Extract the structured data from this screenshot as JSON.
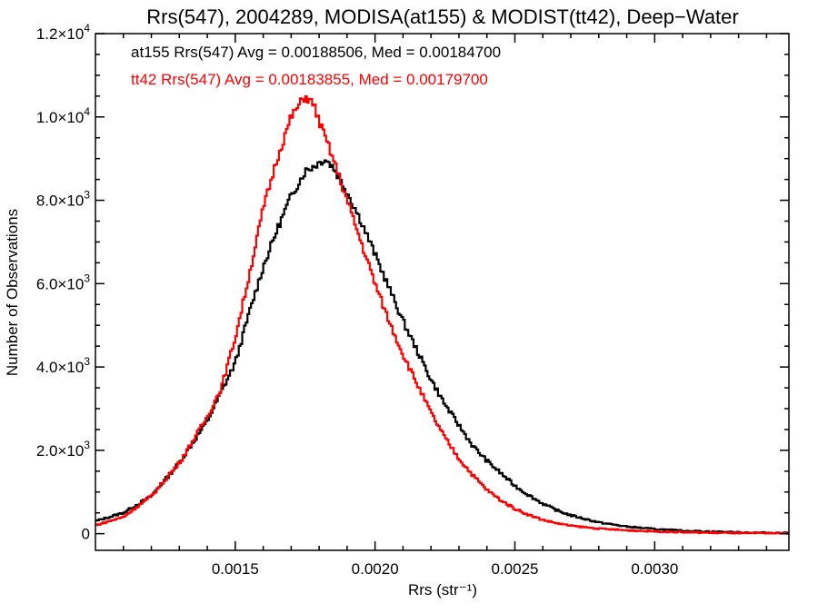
{
  "chart_data": {
    "type": "histogram",
    "title": "Rrs(547), 2004289, MODISA(at155) & MODIST(tt42), Deep−Water",
    "xlabel": "Rrs (str⁻¹)",
    "ylabel": "Number of Observations",
    "xlim": [
      0.001,
      0.00348
    ],
    "ylim": [
      -400,
      12000
    ],
    "x_ticks": [
      {
        "value": 0.0015,
        "label": "0.0015"
      },
      {
        "value": 0.002,
        "label": "0.0020"
      },
      {
        "value": 0.0025,
        "label": "0.0025"
      },
      {
        "value": 0.003,
        "label": "0.0030"
      }
    ],
    "y_ticks": [
      {
        "value": 0,
        "mantissa": "0",
        "exp": ""
      },
      {
        "value": 2000,
        "mantissa": "2.0×10",
        "exp": "3"
      },
      {
        "value": 4000,
        "mantissa": "4.0×10",
        "exp": "3"
      },
      {
        "value": 6000,
        "mantissa": "6.0×10",
        "exp": "3"
      },
      {
        "value": 8000,
        "mantissa": "8.0×10",
        "exp": "3"
      },
      {
        "value": 10000,
        "mantissa": "1.0×10",
        "exp": "4"
      },
      {
        "value": 12000,
        "mantissa": "1.2×10",
        "exp": "4"
      }
    ],
    "series": [
      {
        "name": "at155",
        "label": "at155 Rrs(547) Avg = 0.00188506, Med = 0.00184700",
        "color": "#000000",
        "peak_x": 0.00181,
        "points": [
          [
            0.001,
            300
          ],
          [
            0.0011,
            500
          ],
          [
            0.0012,
            900
          ],
          [
            0.0013,
            1700
          ],
          [
            0.0014,
            2700
          ],
          [
            0.00145,
            3400
          ],
          [
            0.0015,
            4100
          ],
          [
            0.00155,
            5300
          ],
          [
            0.0016,
            6400
          ],
          [
            0.00165,
            7300
          ],
          [
            0.0017,
            8100
          ],
          [
            0.00175,
            8700
          ],
          [
            0.0018,
            8900
          ],
          [
            0.00182,
            9000
          ],
          [
            0.00185,
            8800
          ],
          [
            0.0019,
            8200
          ],
          [
            0.00195,
            7500
          ],
          [
            0.002,
            6700
          ],
          [
            0.00205,
            5900
          ],
          [
            0.0021,
            5100
          ],
          [
            0.00215,
            4400
          ],
          [
            0.0022,
            3700
          ],
          [
            0.00225,
            3100
          ],
          [
            0.0023,
            2600
          ],
          [
            0.00235,
            2100
          ],
          [
            0.0024,
            1750
          ],
          [
            0.00245,
            1450
          ],
          [
            0.0025,
            1150
          ],
          [
            0.00255,
            920
          ],
          [
            0.0026,
            720
          ],
          [
            0.00265,
            560
          ],
          [
            0.0027,
            440
          ],
          [
            0.0028,
            270
          ],
          [
            0.0029,
            170
          ],
          [
            0.003,
            110
          ],
          [
            0.0031,
            70
          ],
          [
            0.0032,
            50
          ],
          [
            0.0033,
            30
          ],
          [
            0.00348,
            15
          ]
        ]
      },
      {
        "name": "tt42",
        "label": "tt42 Rrs(547) Avg = 0.00183855, Med = 0.00179700",
        "color": "#ff0000",
        "peak_x": 0.00175,
        "points": [
          [
            0.001,
            200
          ],
          [
            0.0011,
            400
          ],
          [
            0.0012,
            900
          ],
          [
            0.0013,
            1700
          ],
          [
            0.0014,
            2800
          ],
          [
            0.00145,
            3500
          ],
          [
            0.0015,
            4700
          ],
          [
            0.00155,
            6200
          ],
          [
            0.0016,
            7800
          ],
          [
            0.00165,
            9000
          ],
          [
            0.0017,
            10000
          ],
          [
            0.00175,
            10500
          ],
          [
            0.00178,
            10300
          ],
          [
            0.0018,
            9900
          ],
          [
            0.00185,
            9000
          ],
          [
            0.0019,
            8000
          ],
          [
            0.00195,
            7000
          ],
          [
            0.002,
            6000
          ],
          [
            0.00205,
            5100
          ],
          [
            0.0021,
            4300
          ],
          [
            0.00215,
            3600
          ],
          [
            0.0022,
            2900
          ],
          [
            0.00225,
            2300
          ],
          [
            0.0023,
            1800
          ],
          [
            0.00235,
            1400
          ],
          [
            0.0024,
            1050
          ],
          [
            0.00245,
            800
          ],
          [
            0.0025,
            600
          ],
          [
            0.00255,
            450
          ],
          [
            0.0026,
            330
          ],
          [
            0.00265,
            250
          ],
          [
            0.0027,
            190
          ],
          [
            0.0028,
            120
          ],
          [
            0.0029,
            80
          ],
          [
            0.003,
            55
          ],
          [
            0.0031,
            35
          ],
          [
            0.0032,
            22
          ],
          [
            0.0033,
            14
          ],
          [
            0.00348,
            8
          ]
        ]
      }
    ]
  }
}
